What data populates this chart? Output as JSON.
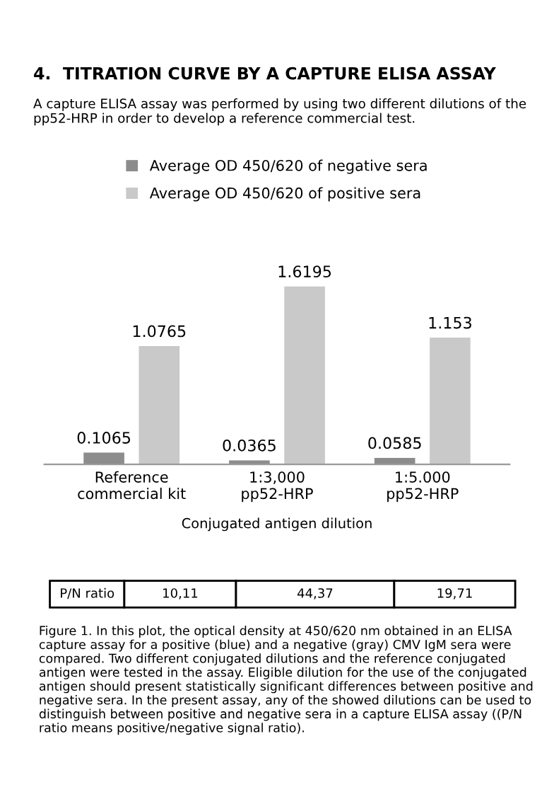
{
  "chart_data": {
    "type": "bar",
    "title": "4.  TITRATION CURVE BY A CAPTURE ELISA ASSAY",
    "subtitle": "A capture ELISA assay was performed by using two different dilutions of the pp52-HRP in order to develop a reference commercial test.",
    "categories": [
      "Reference\ncommercial kit",
      "1:3,000\npp52-HRP",
      "1:5.000\npp52-HRP"
    ],
    "series": [
      {
        "name": "Average OD 450/620 of negative sera",
        "color": "#8c8c8c",
        "values": [
          0.1065,
          0.0365,
          0.0585
        ]
      },
      {
        "name": "Average OD 450/620 of positive sera",
        "color": "#c9c9c9",
        "values": [
          1.0765,
          1.6195,
          1.153
        ]
      }
    ],
    "data_labels": true,
    "legend": "top",
    "xlabel": "Conjugated antigen dilution",
    "annotations": [
      "P/N ratio",
      "10,11",
      "44,37",
      "19,71",
      "Figure 1. In this plot, the optical density at 450/620 nm obtained in an ELISA capture assay for a positive (blue) and a negative (gray) CMV IgM sera were compared. Two different conjugated dilutions and the reference conjugated antigen were tested in the assay. Eligible dilution for the use of the conjugated antigen should present statistically significant differences between positive and negative sera. In the present assay, any of the showed dilutions can be used to distinguish between positive and negative sera in a capture ELISA assay ((P/N ratio means positive/negative signal ratio)."
    ]
  }
}
